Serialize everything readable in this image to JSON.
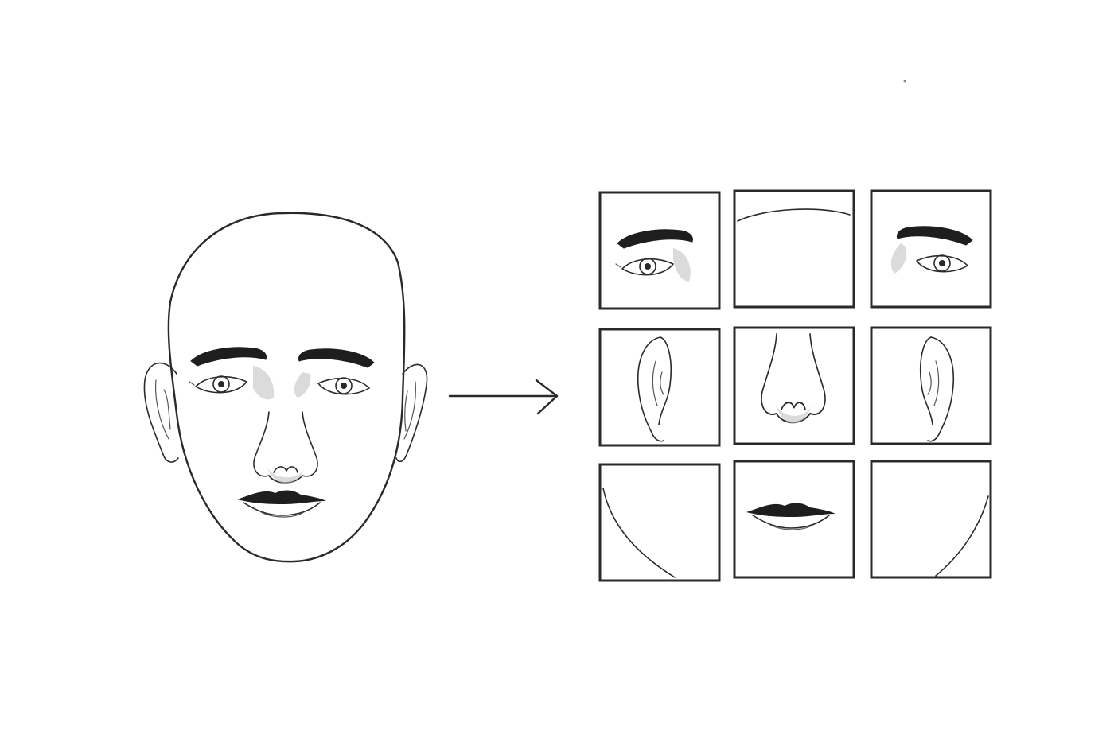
{
  "figure": {
    "source": {
      "subject": "face"
    },
    "arrow": {
      "direction": "right"
    },
    "grid": {
      "rows": 3,
      "cols": 3,
      "tiles": [
        {
          "part": "left-eye"
        },
        {
          "part": "forehead"
        },
        {
          "part": "right-eye"
        },
        {
          "part": "left-ear"
        },
        {
          "part": "nose"
        },
        {
          "part": "right-ear"
        },
        {
          "part": "left-jaw"
        },
        {
          "part": "mouth"
        },
        {
          "part": "right-jaw"
        }
      ]
    },
    "colors": {
      "ink": "#2a2a2a",
      "shade": "#bdbdbd",
      "background": "#ffffff"
    }
  }
}
